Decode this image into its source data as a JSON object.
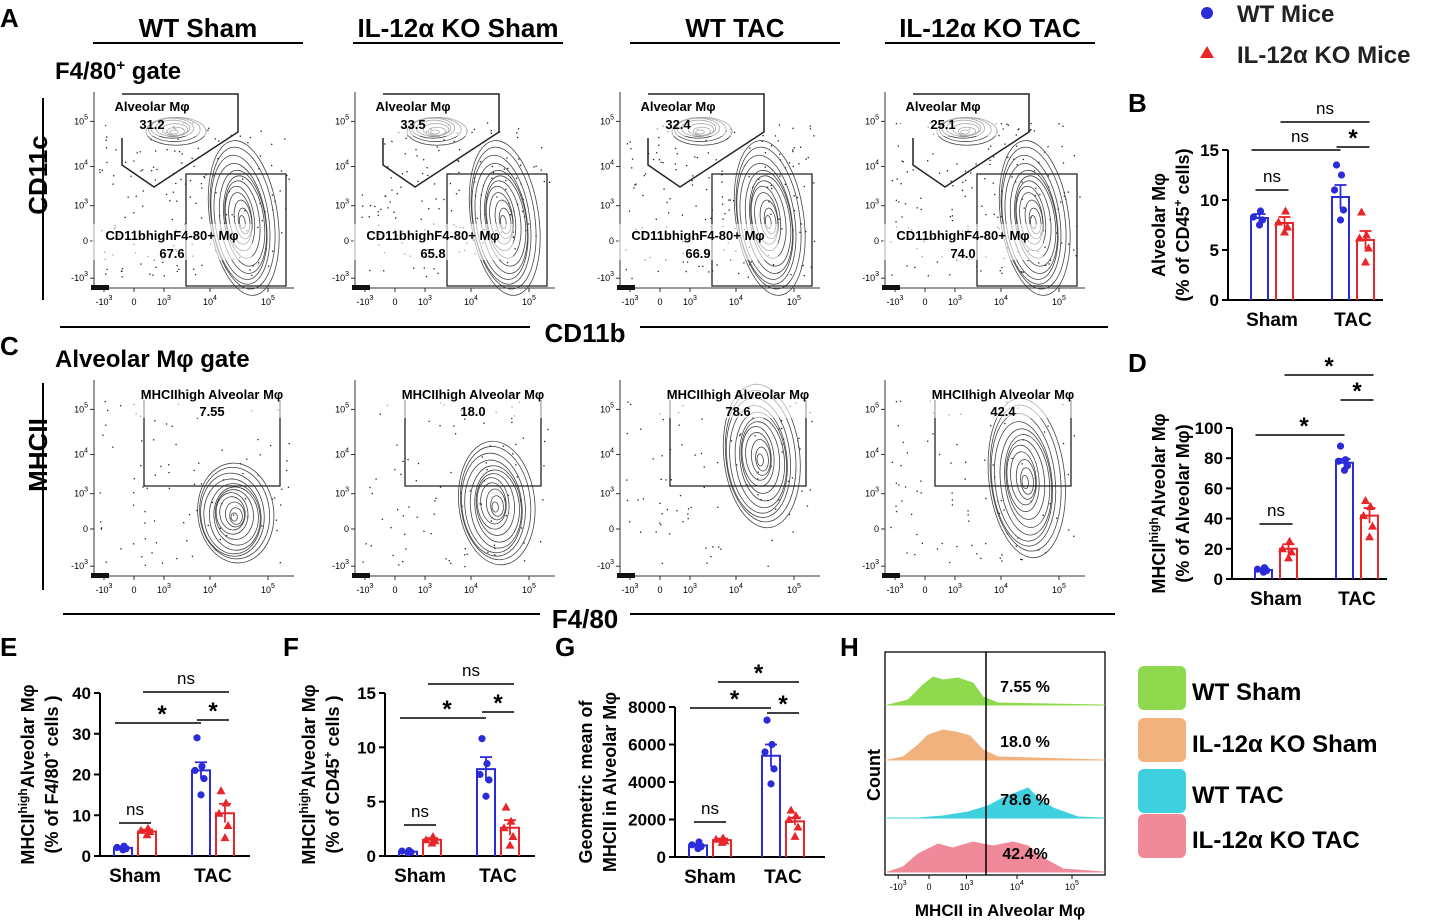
{
  "panel_letters": {
    "A": "A",
    "B": "B",
    "C": "C",
    "D": "D",
    "E": "E",
    "F": "F",
    "G": "G",
    "H": "H"
  },
  "colors": {
    "wt": "#2b2bd9",
    "ko": "#e8262a",
    "wt_sham": "#8fd94e",
    "ko_sham": "#f2b27d",
    "wt_tac": "#3fd0e0",
    "ko_tac": "#f08a9a"
  },
  "groups": [
    "WT Sham",
    "IL-12α KO Sham",
    "WT TAC",
    "IL-12α KO TAC"
  ],
  "legend_top": {
    "wt": "WT Mice",
    "ko": "IL-12α KO Mice"
  },
  "panelA": {
    "gate_label_main": "F4/80",
    "gate_label_sup": "+",
    "gate_label_tail": " gate",
    "y_axis": "CD11c",
    "x_axis": "CD11b",
    "upper_label": "Alveolar Mφ",
    "lower_label": "CD11bhighF4-80+ Mφ",
    "plots": [
      {
        "upper": "31.2",
        "lower": "67.6"
      },
      {
        "upper": "33.5",
        "lower": "65.8"
      },
      {
        "upper": "32.4",
        "lower": "66.9"
      },
      {
        "upper": "25.1",
        "lower": "74.0"
      }
    ]
  },
  "panelC": {
    "gate_label": "Alveolar Mφ gate",
    "y_axis": "MHCII",
    "x_axis": "F4/80",
    "gate_name": "MHCIIhigh Alveolar Mφ",
    "plots": [
      {
        "value": "7.55"
      },
      {
        "value": "18.0"
      },
      {
        "value": "78.6"
      },
      {
        "value": "42.4"
      }
    ]
  },
  "flow_ticks": {
    "x": [
      "-10",
      "3",
      "0",
      "10",
      "3",
      "10",
      "4",
      "10",
      "5"
    ],
    "y": [
      "10",
      "5",
      "10",
      "4",
      "10",
      "3",
      "0",
      "-10",
      "3"
    ]
  },
  "chart_data": [
    {
      "id": "B",
      "type": "bar",
      "categories": [
        "Sham",
        "TAC"
      ],
      "series": [
        {
          "name": "WT Mice",
          "values": [
            8.2,
            10.3
          ],
          "sem": [
            0.4,
            1.2
          ],
          "points": [
            [
              7.5,
              8.0,
              8.3,
              8.9
            ],
            [
              8.0,
              9.0,
              11.0,
              12.5,
              13.5
            ]
          ]
        },
        {
          "name": "IL-12α KO Mice",
          "values": [
            7.7,
            6.0
          ],
          "sem": [
            0.6,
            0.9
          ],
          "points": [
            [
              6.8,
              7.3,
              7.8,
              8.9
            ],
            [
              3.8,
              5.2,
              6.2,
              6.5,
              8.8
            ]
          ]
        }
      ],
      "ylabel_lines": [
        "Alveolar Mφ",
        "(% of CD45+ cells)"
      ],
      "ylim": [
        0,
        15
      ],
      "yticks": [
        "0",
        "5",
        "10",
        "15"
      ],
      "annotations": [
        {
          "text": "ns",
          "type": "sham"
        },
        {
          "text": "*",
          "type": "tac"
        },
        {
          "text": "ns",
          "type": "wt"
        },
        {
          "text": "ns",
          "type": "ko"
        }
      ]
    },
    {
      "id": "D",
      "type": "bar",
      "categories": [
        "Sham",
        "TAC"
      ],
      "series": [
        {
          "name": "WT Mice",
          "values": [
            6,
            77
          ],
          "sem": [
            1,
            2.5
          ],
          "points": [
            [
              4.5,
              5.5,
              6.5,
              7.5
            ],
            [
              72,
              75,
              78,
              79,
              88
            ]
          ]
        },
        {
          "name": "IL-12α KO Mice",
          "values": [
            20,
            42
          ],
          "sem": [
            3,
            5
          ],
          "points": [
            [
              14,
              18,
              20,
              25
            ],
            [
              28,
              35,
              42,
              48,
              52
            ]
          ]
        }
      ],
      "ylabel_lines": [
        "MHCIIhighAlveolar Mφ",
        "(% of Alveolar Mφ)"
      ],
      "ylim": [
        0,
        100
      ],
      "yticks": [
        "0",
        "20",
        "40",
        "60",
        "80",
        "100"
      ],
      "annotations": [
        {
          "text": "ns",
          "type": "sham"
        },
        {
          "text": "*",
          "type": "tac"
        },
        {
          "text": "*",
          "type": "wt"
        },
        {
          "text": "*",
          "type": "ko"
        }
      ]
    },
    {
      "id": "E",
      "type": "bar",
      "categories": [
        "Sham",
        "TAC"
      ],
      "series": [
        {
          "name": "WT Mice",
          "values": [
            2,
            21
          ],
          "sem": [
            0.3,
            2
          ],
          "points": [
            [
              1.5,
              1.8,
              2.1,
              2.4
            ],
            [
              15,
              19,
              21,
              22,
              29
            ]
          ]
        },
        {
          "name": "IL-12α KO Mice",
          "values": [
            6,
            10.5
          ],
          "sem": [
            0.5,
            2.3
          ],
          "points": [
            [
              5.2,
              6.0,
              6.3,
              6.8
            ],
            [
              4.5,
              7.5,
              10.5,
              13,
              16
            ]
          ]
        }
      ],
      "ylabel_lines": [
        "MHCIIhighAlveolar Mφ",
        "(% of F4/80+ cells )"
      ],
      "ylim": [
        0,
        40
      ],
      "yticks": [
        "0",
        "10",
        "20",
        "30",
        "40"
      ],
      "annotations": [
        {
          "text": "ns",
          "type": "sham"
        },
        {
          "text": "*",
          "type": "tac"
        },
        {
          "text": "*",
          "type": "wt"
        },
        {
          "text": "ns",
          "type": "ko"
        }
      ]
    },
    {
      "id": "F",
      "type": "bar",
      "categories": [
        "Sham",
        "TAC"
      ],
      "series": [
        {
          "name": "WT Mice",
          "values": [
            0.4,
            8
          ],
          "sem": [
            0.05,
            1.1
          ],
          "points": [
            [
              0.3,
              0.35,
              0.45,
              0.5
            ],
            [
              5.5,
              7,
              7.5,
              8.5,
              10.8
            ]
          ]
        },
        {
          "name": "IL-12α KO Mice",
          "values": [
            1.5,
            2.6
          ],
          "sem": [
            0.15,
            0.7
          ],
          "points": [
            [
              1.2,
              1.4,
              1.5,
              1.8
            ],
            [
              1.0,
              1.8,
              2.6,
              3.2,
              4.5
            ]
          ]
        }
      ],
      "ylabel_lines": [
        "MHCIIhighAlveolar Mφ",
        "(% of CD45+ cells )"
      ],
      "ylim": [
        0,
        15
      ],
      "yticks": [
        "0",
        "5",
        "10",
        "15"
      ],
      "annotations": [
        {
          "text": "ns",
          "type": "sham"
        },
        {
          "text": "*",
          "type": "tac"
        },
        {
          "text": "*",
          "type": "wt"
        },
        {
          "text": "ns",
          "type": "ko"
        }
      ]
    },
    {
      "id": "G",
      "type": "bar",
      "categories": [
        "Sham",
        "TAC"
      ],
      "series": [
        {
          "name": "WT Mice",
          "values": [
            620,
            5400
          ],
          "sem": [
            60,
            600
          ],
          "points": [
            [
              450,
              550,
              650,
              800
            ],
            [
              3900,
              4700,
              5600,
              6000,
              7300
            ]
          ]
        },
        {
          "name": "IL-12α KO Mice",
          "values": [
            900,
            1900
          ],
          "sem": [
            80,
            200
          ],
          "points": [
            [
              780,
              860,
              950,
              1020
            ],
            [
              1100,
              1600,
              2000,
              2200,
              2500
            ]
          ]
        }
      ],
      "ylabel_lines": [
        "Geometric mean of",
        "MHCII in Alveolar Mφ"
      ],
      "ylim": [
        0,
        8000
      ],
      "yticks": [
        "0",
        "2000",
        "4000",
        "6000",
        "8000"
      ],
      "annotations": [
        {
          "text": "ns",
          "type": "sham"
        },
        {
          "text": "*",
          "type": "tac"
        },
        {
          "text": "*",
          "type": "wt"
        },
        {
          "text": "*",
          "type": "ko"
        }
      ]
    }
  ],
  "panelH": {
    "ylabel": "Count",
    "xlabel": "MHCII in Alveolar Mφ",
    "histograms": [
      {
        "group": "WT Sham",
        "pct": "7.55 %"
      },
      {
        "group": "IL-12α KO Sham",
        "pct": "18.0 %"
      },
      {
        "group": "WT TAC",
        "pct": "78.6 %"
      },
      {
        "group": "IL-12α KO TAC",
        "pct": "42.4%"
      }
    ],
    "ticks": [
      "-10",
      "3",
      "0",
      "10",
      "3",
      "10",
      "4",
      "10",
      "5"
    ]
  }
}
